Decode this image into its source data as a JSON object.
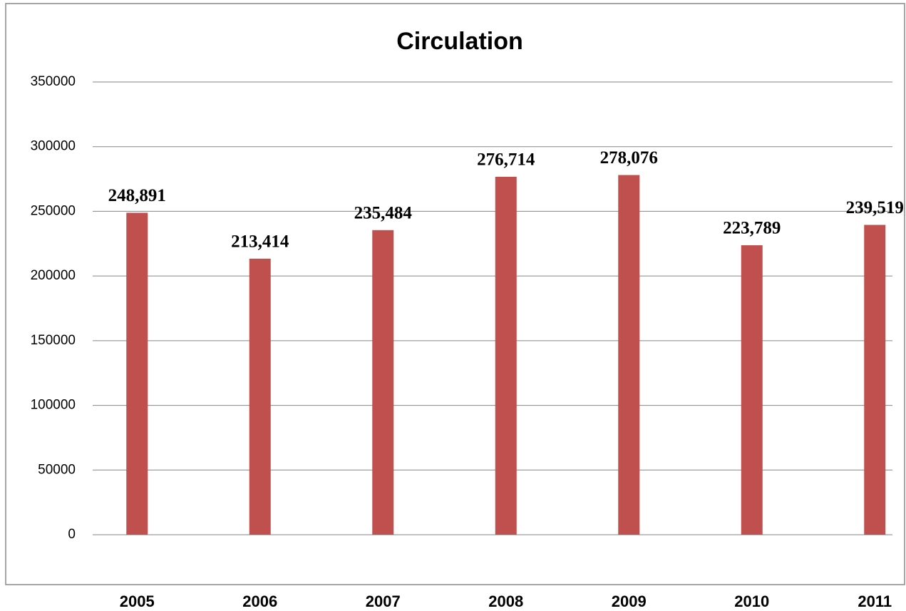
{
  "chart_data": {
    "type": "bar",
    "title": "Circulation",
    "categories": [
      "2005",
      "2006",
      "2007",
      "2008",
      "2009",
      "2010",
      "2011"
    ],
    "values": [
      248891,
      213414,
      235484,
      276714,
      278076,
      223789,
      239519
    ],
    "value_labels": [
      "248,891",
      "213,414",
      "235,484",
      "276,714",
      "278,076",
      "223,789",
      "239,519"
    ],
    "color": "#c0504d",
    "ylim": [
      0,
      350000
    ],
    "yticks": [
      0,
      50000,
      100000,
      150000,
      200000,
      250000,
      300000,
      350000
    ],
    "grid": true
  }
}
